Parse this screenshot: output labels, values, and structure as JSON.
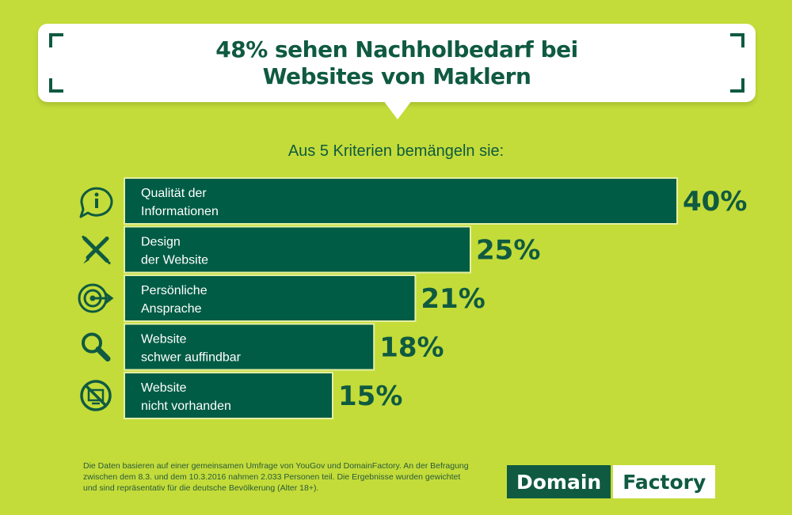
{
  "header": {
    "title_line1": "48% sehen Nachholbedarf bei",
    "title_line2": "Websites von Maklern"
  },
  "subtitle": "Aus 5 Kriterien bemängeln sie:",
  "chart_data": {
    "type": "bar",
    "orientation": "horizontal",
    "categories": [
      [
        "Qualität der",
        "Informationen"
      ],
      [
        "Design",
        "der Website"
      ],
      [
        "Persönliche",
        "Ansprache"
      ],
      [
        "Website",
        "schwer auffindbar"
      ],
      [
        "Website",
        "nicht vorhanden"
      ]
    ],
    "values": [
      40,
      25,
      21,
      18,
      15
    ],
    "value_labels": [
      "40%",
      "25%",
      "21%",
      "18%",
      "15%"
    ],
    "icons": [
      "info-speech-icon",
      "pencil-brush-icon",
      "target-arrow-icon",
      "magnifier-icon",
      "no-website-icon"
    ],
    "xlim": [
      0,
      40
    ],
    "bar_color": "#005c45",
    "grid": false
  },
  "footnote": {
    "line1": "Die Daten basieren auf einer gemeinsamen Umfrage von YouGov und DomainFactory. An der Befragung",
    "line2": "zwischen dem 8.3. und dem 10.3.2016 nahmen 2.033 Personen teil. Die Ergebnisse wurden gewichtet",
    "line3": "und sind repräsentativ für die deutsche Bevölkerung (Alter 18+)."
  },
  "logo": {
    "part1": "Domain",
    "part2": "Factory"
  },
  "colors": {
    "background": "#c3dc39",
    "dark_green": "#0f5a41",
    "white": "#ffffff"
  }
}
